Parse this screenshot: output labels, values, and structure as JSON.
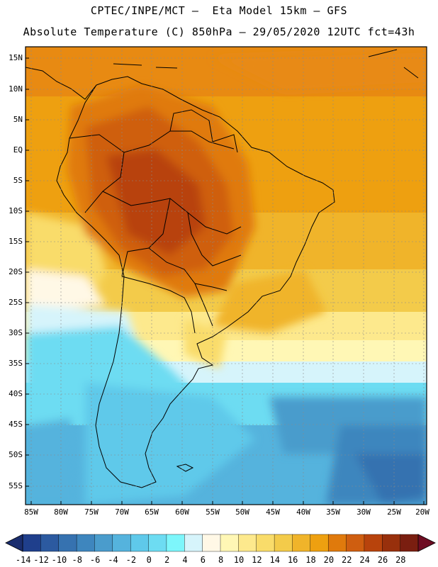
{
  "header": {
    "line1": "CPTEC/INPE/MCT –  Eta Model 15km – GFS",
    "line2": "Absolute Temperature (C) 850hPa – 29/05/2020 12UTC fct=43h"
  },
  "map": {
    "lat_labels": [
      "15N",
      "10N",
      "5N",
      "EQ",
      "5S",
      "10S",
      "15S",
      "20S",
      "25S",
      "30S",
      "35S",
      "40S",
      "45S",
      "50S",
      "55S"
    ],
    "lon_labels": [
      "85W",
      "80W",
      "75W",
      "70W",
      "65W",
      "60W",
      "55W",
      "50W",
      "45W",
      "40W",
      "35W",
      "30W",
      "25W",
      "20W"
    ],
    "region": "South America"
  },
  "colorbar": {
    "labels": [
      "-14",
      "-12",
      "-10",
      "-8",
      "-6",
      "-4",
      "-2",
      "0",
      "2",
      "4",
      "6",
      "8",
      "10",
      "12",
      "14",
      "16",
      "18",
      "20",
      "22",
      "24",
      "26",
      "28"
    ],
    "colors": [
      "#1f3f8c",
      "#2c5aa0",
      "#3672b0",
      "#3e86be",
      "#4a9ccc",
      "#55b3dd",
      "#5fc9ea",
      "#6ddcf2",
      "#7df6fb",
      "#d6f4fb",
      "#fff8e6",
      "#fff7b5",
      "#fde98d",
      "#f9dc6a",
      "#f3cb4a",
      "#f0b42a",
      "#eea010",
      "#e07a0c",
      "#cf5e10",
      "#b8430c",
      "#98300c",
      "#7a1e10"
    ]
  }
}
